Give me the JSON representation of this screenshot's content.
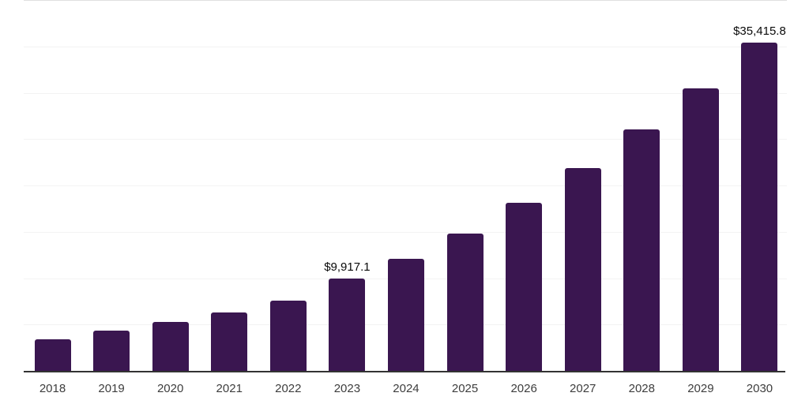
{
  "chart_data": {
    "type": "bar",
    "title": "",
    "xlabel": "",
    "ylabel": "",
    "categories": [
      "2018",
      "2019",
      "2020",
      "2021",
      "2022",
      "2023",
      "2024",
      "2025",
      "2026",
      "2027",
      "2028",
      "2029",
      "2030"
    ],
    "values": [
      3380,
      4370,
      5250,
      6330,
      7550,
      9917.1,
      12060,
      14810,
      18160,
      21910,
      26080,
      30510,
      35415.8
    ],
    "labeled_points": [
      {
        "category": "2023",
        "label": "$9,917.1"
      },
      {
        "category": "2030",
        "label": "$35,415.8"
      }
    ],
    "ylim": [
      0,
      40000
    ],
    "grid_step": 5000,
    "grid": true,
    "legend": false,
    "y_axis_labels_visible": false
  },
  "colors": {
    "bar": "#3A1650",
    "axis_line": "#333333",
    "grid_line": "#F3F3F3",
    "grid_line_top": "#E0E0E0",
    "tick_label": "#3D3D3D",
    "data_label": "#0A0A0A",
    "background": "#FFFFFF"
  }
}
